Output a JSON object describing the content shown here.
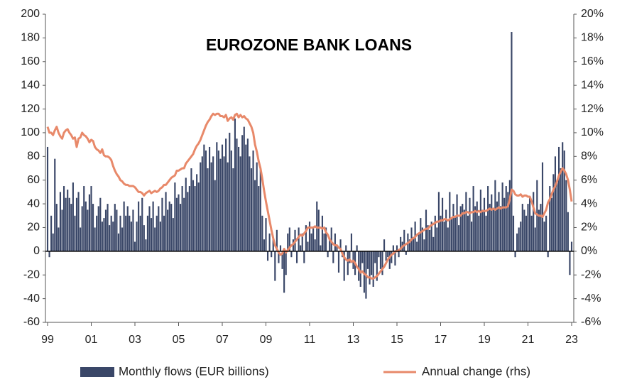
{
  "chart_data": {
    "type": "bar_line",
    "title": "EUROZONE  BANK LOANS",
    "legend": "bottom",
    "categories": [
      "99",
      null,
      null,
      null,
      null,
      null,
      null,
      null,
      null,
      null,
      null,
      null,
      null,
      null,
      null,
      null,
      null,
      null,
      null,
      null,
      null,
      null,
      null,
      null,
      "01",
      null,
      null,
      null,
      null,
      null,
      null,
      null,
      null,
      null,
      null,
      null,
      null,
      null,
      null,
      null,
      null,
      null,
      null,
      null,
      null,
      null,
      null,
      null,
      "03",
      null,
      null,
      null,
      null,
      null,
      null,
      null,
      null,
      null,
      null,
      null,
      null,
      null,
      null,
      null,
      null,
      null,
      null,
      null,
      null,
      null,
      null,
      null,
      "05",
      null,
      null,
      null,
      null,
      null,
      null,
      null,
      null,
      null,
      null,
      null,
      null,
      null,
      null,
      null,
      null,
      null,
      null,
      null,
      null,
      null,
      null,
      null,
      "07",
      null,
      null,
      null,
      null,
      null,
      null,
      null,
      null,
      null,
      null,
      null,
      null,
      null,
      null,
      null,
      null,
      null,
      null,
      null,
      null,
      null,
      null,
      null,
      "09",
      null,
      null,
      null,
      null,
      null,
      null,
      null,
      null,
      null,
      null,
      null,
      null,
      null,
      null,
      null,
      null,
      null,
      null,
      null,
      null,
      null,
      null,
      null,
      "11",
      null,
      null,
      null,
      null,
      null,
      null,
      null,
      null,
      null,
      null,
      null,
      null,
      null,
      null,
      null,
      null,
      null,
      null,
      null,
      null,
      null,
      null,
      null,
      "13",
      null,
      null,
      null,
      null,
      null,
      null,
      null,
      null,
      null,
      null,
      null,
      null,
      null,
      null,
      null,
      null,
      null,
      null,
      null,
      null,
      null,
      null,
      null,
      "15",
      null,
      null,
      null,
      null,
      null,
      null,
      null,
      null,
      null,
      null,
      null,
      null,
      null,
      null,
      null,
      null,
      null,
      null,
      null,
      null,
      null,
      null,
      null,
      "17",
      null,
      null,
      null,
      null,
      null,
      null,
      null,
      null,
      null,
      null,
      null,
      null,
      null,
      null,
      null,
      null,
      null,
      null,
      null,
      null,
      null,
      null,
      null,
      "19",
      null,
      null,
      null,
      null,
      null,
      null,
      null,
      null,
      null,
      null,
      null,
      null,
      null,
      null,
      null,
      null,
      null,
      null,
      null,
      null,
      null,
      null,
      null,
      "21",
      null,
      null,
      null,
      null,
      null,
      null,
      null,
      null,
      null,
      null,
      null,
      null,
      null,
      null,
      null,
      null,
      null,
      null,
      null,
      null,
      null,
      null,
      null,
      "23"
    ],
    "series": [
      {
        "name": "Monthly flows (EUR billions)",
        "color": "#3a4768",
        "axis": "y",
        "values": [
          88,
          -5,
          30,
          15,
          78,
          40,
          20,
          50,
          35,
          55,
          45,
          52,
          45,
          40,
          58,
          30,
          45,
          50,
          20,
          38,
          55,
          42,
          35,
          48,
          55,
          40,
          20,
          30,
          38,
          45,
          25,
          28,
          35,
          40,
          22,
          30,
          25,
          40,
          35,
          15,
          30,
          20,
          42,
          30,
          38,
          30,
          25,
          35,
          8,
          25,
          42,
          30,
          45,
          22,
          10,
          30,
          38,
          28,
          42,
          20,
          30,
          38,
          25,
          45,
          30,
          50,
          35,
          42,
          40,
          28,
          58,
          45,
          48,
          40,
          55,
          45,
          62,
          50,
          55,
          70,
          60,
          55,
          65,
          58,
          75,
          80,
          90,
          85,
          70,
          88,
          75,
          80,
          60,
          92,
          85,
          78,
          90,
          80,
          95,
          75,
          100,
          85,
          70,
          112,
          95,
          88,
          80,
          98,
          105,
          90,
          95,
          80,
          70,
          85,
          60,
          75,
          55,
          70,
          30,
          10,
          28,
          -8,
          15,
          -5,
          10,
          -25,
          18,
          -10,
          5,
          -15,
          -35,
          -20,
          15,
          20,
          -5,
          10,
          18,
          -10,
          20,
          5,
          15,
          -10,
          22,
          8,
          25,
          15,
          20,
          10,
          42,
          35,
          5,
          30,
          15,
          20,
          -5,
          10,
          20,
          -10,
          15,
          5,
          -18,
          10,
          -5,
          -25,
          5,
          -20,
          -10,
          15,
          -15,
          -20,
          5,
          -25,
          -30,
          -10,
          -35,
          -40,
          -15,
          -28,
          -20,
          -30,
          -10,
          -25,
          -5,
          -15,
          -20,
          10,
          -8,
          -5,
          -15,
          -10,
          5,
          -12,
          5,
          -5,
          12,
          8,
          18,
          -3,
          15,
          10,
          20,
          12,
          25,
          8,
          15,
          28,
          20,
          10,
          35,
          22,
          18,
          25,
          12,
          30,
          20,
          50,
          30,
          45,
          25,
          35,
          20,
          50,
          28,
          40,
          30,
          48,
          22,
          38,
          40,
          35,
          50,
          30,
          45,
          25,
          55,
          38,
          42,
          30,
          52,
          35,
          45,
          30,
          55,
          40,
          48,
          35,
          60,
          42,
          50,
          38,
          58,
          45,
          55,
          50,
          60,
          185,
          30,
          -5,
          15,
          20,
          25,
          40,
          35,
          30,
          40,
          45,
          30,
          50,
          20,
          60,
          35,
          40,
          75,
          25,
          30,
          -5,
          55,
          45,
          65,
          80,
          60,
          88,
          70,
          92,
          85,
          60,
          33,
          -20,
          8
        ]
      },
      {
        "name": "Annual change (rhs)",
        "color": "#e8896a",
        "axis": "y2",
        "values": [
          10.5,
          10,
          10,
          9.8,
          10.2,
          10.5,
          10,
          9.7,
          9.5,
          10,
          10.2,
          10.3,
          10,
          9.8,
          9.5,
          9.6,
          8.8,
          9.5,
          9.6,
          10,
          9.8,
          9.7,
          9.5,
          9.2,
          9.4,
          9.3,
          8.8,
          8.6,
          8.5,
          8.3,
          8.6,
          8.1,
          8,
          8,
          7.9,
          7.7,
          7.2,
          6.8,
          6.5,
          6.3,
          6,
          5.9,
          5.7,
          5.6,
          5.6,
          5.5,
          5.5,
          5.5,
          5.4,
          5.2,
          5,
          5,
          4.9,
          4.7,
          4.9,
          5,
          5.1,
          4.9,
          5,
          5.1,
          5,
          5.1,
          5.3,
          5.4,
          5.6,
          5.6,
          5.8,
          6,
          6.2,
          6.3,
          6.4,
          6.8,
          6.8,
          6.9,
          7,
          7,
          7.4,
          7.6,
          7.8,
          8,
          8.2,
          8.6,
          8.9,
          9.1,
          9.4,
          9.8,
          10.2,
          10.6,
          10.9,
          11.1,
          11.4,
          11.6,
          11.5,
          11.6,
          11.6,
          11.4,
          11.4,
          11.3,
          11.5,
          11,
          11.2,
          11.3,
          11.1,
          11.5,
          11.6,
          11.3,
          11.5,
          11.3,
          11.4,
          11.2,
          11.1,
          10.8,
          10.5,
          10,
          9,
          8.4,
          7.6,
          7,
          6.1,
          5.1,
          4.2,
          3.4,
          2.6,
          1.8,
          1.1,
          0.5,
          0.2,
          -0.1,
          -0.3,
          -0.2,
          0.2,
          -0.1,
          0.1,
          0.3,
          0.5,
          0.6,
          0.8,
          1,
          1.2,
          1.4,
          1.3,
          1.5,
          1.7,
          2,
          2,
          2,
          2,
          2.1,
          2,
          2,
          2,
          1.9,
          2,
          1.6,
          1.4,
          1,
          0.8,
          0.6,
          0.5,
          0.5,
          0.3,
          0.2,
          -0.2,
          -0.5,
          -0.7,
          -0.8,
          -0.7,
          -0.9,
          -0.8,
          -1,
          -1.3,
          -1.5,
          -1.8,
          -1.7,
          -1.9,
          -2,
          -2.2,
          -2.2,
          -2.3,
          -2.3,
          -2.2,
          -2.1,
          -1.9,
          -1.7,
          -1.5,
          -1.3,
          -1,
          -0.7,
          -0.5,
          -0.3,
          -0.2,
          0,
          0,
          0.1,
          0.2,
          0.4,
          0.5,
          0.6,
          0.7,
          0.8,
          1,
          1.1,
          1.2,
          1.4,
          1.5,
          1.6,
          1.7,
          1.8,
          1.9,
          1.9,
          2.1,
          2.2,
          2.3,
          2.4,
          2.5,
          2.5,
          2.6,
          2.6,
          2.7,
          2.7,
          2.6,
          2.7,
          2.8,
          2.9,
          2.9,
          3,
          3,
          3,
          3.2,
          3.2,
          3.3,
          3.3,
          3.2,
          3.3,
          3.3,
          3.4,
          3.3,
          3.4,
          3.3,
          3.4,
          3.4,
          3.4,
          3.5,
          3.6,
          3.5,
          3.6,
          3.5,
          3.6,
          3.7,
          3.6,
          3.7,
          3.7,
          3.7,
          3.8,
          4.4,
          5.2,
          5.1,
          4.8,
          4.7,
          4.7,
          4.8,
          4.6,
          4.7,
          4.7,
          4.6,
          4.6,
          4.2,
          3.7,
          3.2,
          3.1,
          3,
          3,
          2.9,
          3.2,
          3.5,
          4.1,
          4.4,
          4.8,
          5.2,
          5.5,
          5.9,
          6.4,
          6.7,
          7,
          6.8,
          6.5,
          6,
          5.2,
          4.2
        ]
      }
    ],
    "ylim": [
      -60,
      200
    ],
    "yticks": [
      -60,
      -40,
      -20,
      0,
      20,
      40,
      60,
      80,
      100,
      120,
      140,
      160,
      180,
      200
    ],
    "y2lim": [
      -6,
      20
    ],
    "y2ticks": [
      {
        "value": -6,
        "label": "-6%"
      },
      {
        "value": -4,
        "label": "-4%"
      },
      {
        "value": -2,
        "label": "-2%"
      },
      {
        "value": 0,
        "label": "0%"
      },
      {
        "value": 2,
        "label": "2%"
      },
      {
        "value": 4,
        "label": "4%"
      },
      {
        "value": 6,
        "label": "6%"
      },
      {
        "value": 8,
        "label": "8%"
      },
      {
        "value": 10,
        "label": "10%"
      },
      {
        "value": 12,
        "label": "12%"
      },
      {
        "value": 14,
        "label": "14%"
      },
      {
        "value": 16,
        "label": "16%"
      },
      {
        "value": 18,
        "label": "18%"
      },
      {
        "value": 20,
        "label": "20%"
      }
    ]
  }
}
